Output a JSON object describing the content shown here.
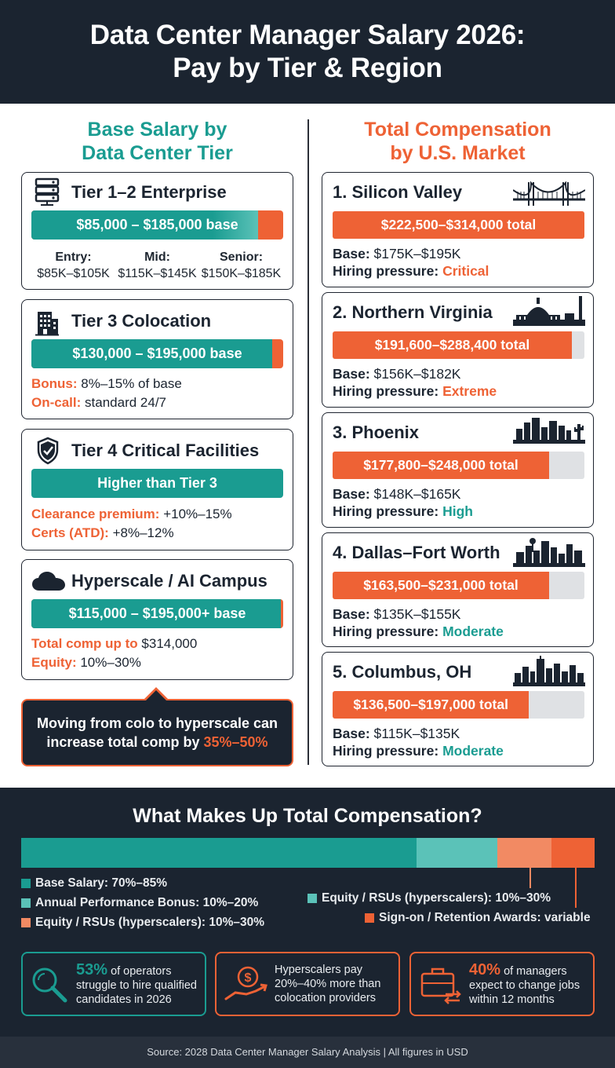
{
  "header": {
    "title_line1": "Data Center Manager Salary 2026:",
    "title_line2": "Pay by Tier & Region"
  },
  "left": {
    "title_line1": "Base Salary by",
    "title_line2": "Data Center Tier",
    "tier12": {
      "title": "Tier 1–2 Enterprise",
      "icon": "server-rack-icon",
      "bar_label": "$85,000 – $185,000 base",
      "levels": [
        {
          "name": "Entry:",
          "range": "$85K–$105K"
        },
        {
          "name": "Mid:",
          "range": "$115K–$145K"
        },
        {
          "name": "Senior:",
          "range": "$150K–$185K"
        }
      ]
    },
    "tier3": {
      "title": "Tier 3 Colocation",
      "icon": "building-icon",
      "bar_label": "$130,000 – $195,000 base",
      "bonus_label": "Bonus:",
      "bonus_value": "8%–15% of base",
      "oncall_label": "On-call:",
      "oncall_value": "standard 24/7"
    },
    "tier4": {
      "title": "Tier 4 Critical Facilities",
      "icon": "shield-check-icon",
      "bar_label": "Higher than Tier 3",
      "clearance_label": "Clearance premium:",
      "clearance_value": "+10%–15%",
      "certs_label": "Certs (ATD):",
      "certs_value": "+8%–12%"
    },
    "hyperscale": {
      "title": "Hyperscale / AI Campus",
      "icon": "cloud-icon",
      "bar_label": "$115,000 – $195,000+ base",
      "total_label": "Total comp up to",
      "total_value": "$314,000",
      "equity_label": "Equity:",
      "equity_value": "10%–30%"
    },
    "callout": {
      "line1": "Moving from colo to hyperscale can",
      "line2_prefix": "increase total comp by",
      "line2_accent": "35%–50%"
    }
  },
  "right": {
    "title_line1": "Total Compensation",
    "title_line2": "by U.S. Market",
    "base_label": "Base:",
    "pressure_label": "Hiring pressure:",
    "markets": [
      {
        "title": "1. Silicon Valley",
        "total": "$222,500–$314,000 total",
        "fill": 1.0,
        "base": "$175K–$195K",
        "pressure": "Critical",
        "pressure_color": "#ee6235",
        "icon": "golden-gate-bridge-icon"
      },
      {
        "title": "2. Northern Virginia",
        "total": "$191,600–$288,400 total",
        "fill": 0.95,
        "base": "$156K–$182K",
        "pressure": "Extreme",
        "pressure_color": "#ee6235",
        "icon": "capitol-skyline-icon"
      },
      {
        "title": "3. Phoenix",
        "total": "$177,800–$248,000 total",
        "fill": 0.86,
        "base": "$148K–$165K",
        "pressure": "High",
        "pressure_color": "#1a9c91",
        "icon": "phoenix-skyline-icon"
      },
      {
        "title": "4. Dallas–Fort Worth",
        "total": "$163,500–$231,000 total",
        "fill": 0.86,
        "base": "$135K–$155K",
        "pressure": "Moderate",
        "pressure_color": "#1a9c91",
        "icon": "dallas-skyline-icon"
      },
      {
        "title": "5. Columbus, OH",
        "total": "$136,500–$197,000 total",
        "fill": 0.78,
        "base": "$115K–$135K",
        "pressure": "Moderate",
        "pressure_color": "#1a9c91",
        "icon": "columbus-skyline-icon"
      }
    ]
  },
  "composition": {
    "title": "What Makes Up Total Compensation?",
    "segments": [
      {
        "label": "Base Salary: 70%–85%",
        "share": 0.69,
        "color": "#1a9c91"
      },
      {
        "label": "Annual Performance Bonus: 10%–20%",
        "share": 0.14,
        "color": "#5bc2b8"
      },
      {
        "label": "Equity / RSUs (hyperscalers): 10%–30%",
        "share": 0.095,
        "color": "#f28a63"
      },
      {
        "label": "Sign-on / Retention Awards: variable",
        "share": 0.075,
        "color": "#ee6235"
      }
    ],
    "legend_right_equity": "Equity / RSUs (hyperscalers): 10%–30%"
  },
  "stats": [
    {
      "big": "53%",
      "text_rest": "of operators",
      "line2": "struggle to hire qualified",
      "line3": "candidates in 2026",
      "color": "#1a9c91",
      "icon": "magnifier-icon"
    },
    {
      "line1": "Hyperscalers pay",
      "line2": "20%–40% more than",
      "line3": "colocation providers",
      "color": "#ee6235",
      "icon": "money-hand-icon"
    },
    {
      "big": "40%",
      "text_rest": "of managers",
      "line2": "expect to change jobs",
      "line3": "within 12 months",
      "color": "#ee6235",
      "icon": "briefcase-arrows-icon"
    }
  ],
  "footer": "Source: 2028 Data Center Manager Salary Analysis | All figures in USD"
}
